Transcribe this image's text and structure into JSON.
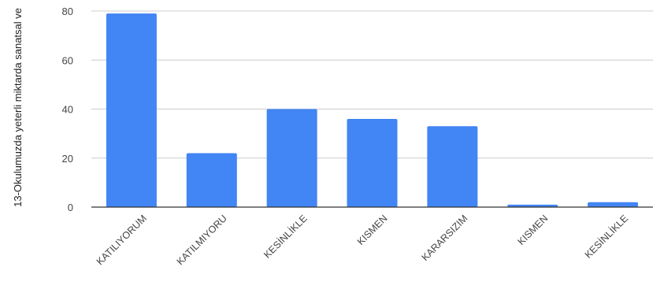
{
  "chart_data": {
    "type": "bar",
    "categories": [
      "KATILIYORUM",
      "KATILMIYORU",
      "KESİNLİKLE",
      "KISMEN",
      "KARARSIZIM",
      "KISMEN",
      "KESİNLİKLE"
    ],
    "values": [
      79,
      22,
      40,
      36,
      33,
      1,
      2
    ],
    "ylabel": "13-Okulumuzda yeterli miktarda sanatsal ve",
    "ylim": [
      0,
      80
    ],
    "yticks": [
      0,
      20,
      40,
      60,
      80
    ],
    "grid": true,
    "legend": "none",
    "colors": {
      "bar": "#4285f4",
      "grid": "#cccccc",
      "baseline": "#333333"
    }
  }
}
